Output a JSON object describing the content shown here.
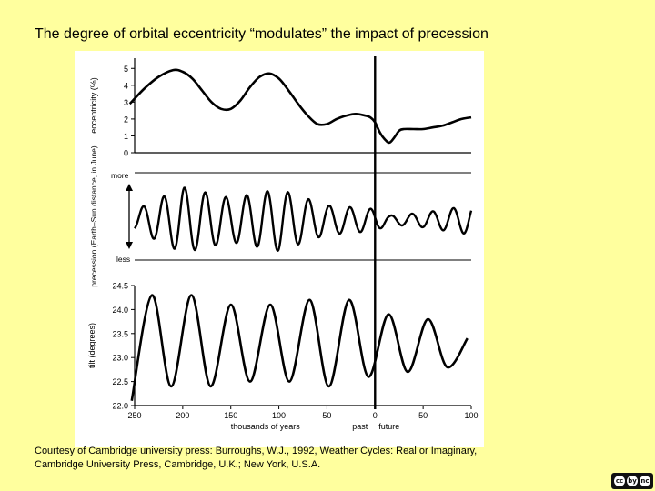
{
  "slide": {
    "title": "The degree of orbital eccentricity “modulates” the impact of precession",
    "caption_line1": "Courtesy of Cambridge university press: Burroughs, W.J., 1992, Weather Cycles: Real or Imaginary,",
    "caption_line2": "Cambridge University Press, Cambridge, U.K.; New York, U.S.A.",
    "license_icons": [
      "cc",
      "by",
      "nc"
    ]
  },
  "chart_data": {
    "type": "line",
    "x": {
      "label": "thousands of years",
      "range": [
        250,
        -100
      ],
      "ticks": [
        250,
        200,
        150,
        100,
        50,
        0,
        50,
        100
      ],
      "tick_values": [
        250,
        200,
        150,
        100,
        50,
        0,
        -50,
        -100
      ],
      "annotations": [
        "past",
        "future"
      ],
      "divider_at": 0
    },
    "panels": [
      {
        "name": "eccentricity",
        "ylabel": "eccentricity (%)",
        "ylim": [
          0,
          5.5
        ],
        "yticks": [
          "0",
          "1",
          "2",
          "3",
          "4",
          "5"
        ],
        "series": {
          "x": [
            255,
            240,
            225,
            210,
            200,
            190,
            180,
            170,
            160,
            150,
            140,
            130,
            120,
            110,
            100,
            90,
            80,
            70,
            60,
            50,
            40,
            30,
            20,
            10,
            5,
            0,
            -5,
            -10,
            -15,
            -20,
            -25,
            -30,
            -40,
            -50,
            -60,
            -70,
            -80,
            -90,
            -100
          ],
          "y": [
            2.9,
            3.8,
            4.5,
            4.9,
            4.8,
            4.4,
            3.7,
            3.0,
            2.6,
            2.6,
            3.1,
            3.9,
            4.5,
            4.7,
            4.4,
            3.7,
            2.9,
            2.2,
            1.7,
            1.7,
            2.0,
            2.2,
            2.3,
            2.2,
            2.1,
            1.8,
            1.2,
            0.8,
            0.6,
            0.9,
            1.3,
            1.4,
            1.4,
            1.4,
            1.5,
            1.6,
            1.8,
            2.0,
            2.1
          ]
        }
      },
      {
        "name": "precession",
        "ylabel": "precession (Earth–Sun distance, in June)",
        "top_label": "more",
        "bottom_label": "less",
        "ylim": [
          -1,
          1
        ],
        "cycle_length_kyr": 21.5,
        "amplitude": {
          "x": [
            255,
            200,
            150,
            100,
            50,
            0,
            -15,
            -50,
            -100
          ],
          "y": [
            0.2,
            0.9,
            0.6,
            0.85,
            0.4,
            0.3,
            0.12,
            0.2,
            0.4
          ]
        }
      },
      {
        "name": "tilt",
        "ylabel": "tilt (degrees)",
        "ylim": [
          22.0,
          24.5
        ],
        "yticks": [
          "22.0",
          "22.5",
          "23.0",
          "23.5",
          "24.0",
          "24.5"
        ],
        "cycle_length_kyr": 41,
        "series": {
          "x": [
            253,
            232,
            212,
            191,
            171,
            150,
            130,
            109,
            89,
            68,
            48,
            27,
            7,
            -14,
            -34,
            -55,
            -75,
            -96
          ],
          "y": [
            22.1,
            24.3,
            22.4,
            24.3,
            22.4,
            24.1,
            22.5,
            24.1,
            22.5,
            24.2,
            22.4,
            24.2,
            22.6,
            23.9,
            22.7,
            23.8,
            22.8,
            23.4
          ]
        }
      }
    ]
  }
}
